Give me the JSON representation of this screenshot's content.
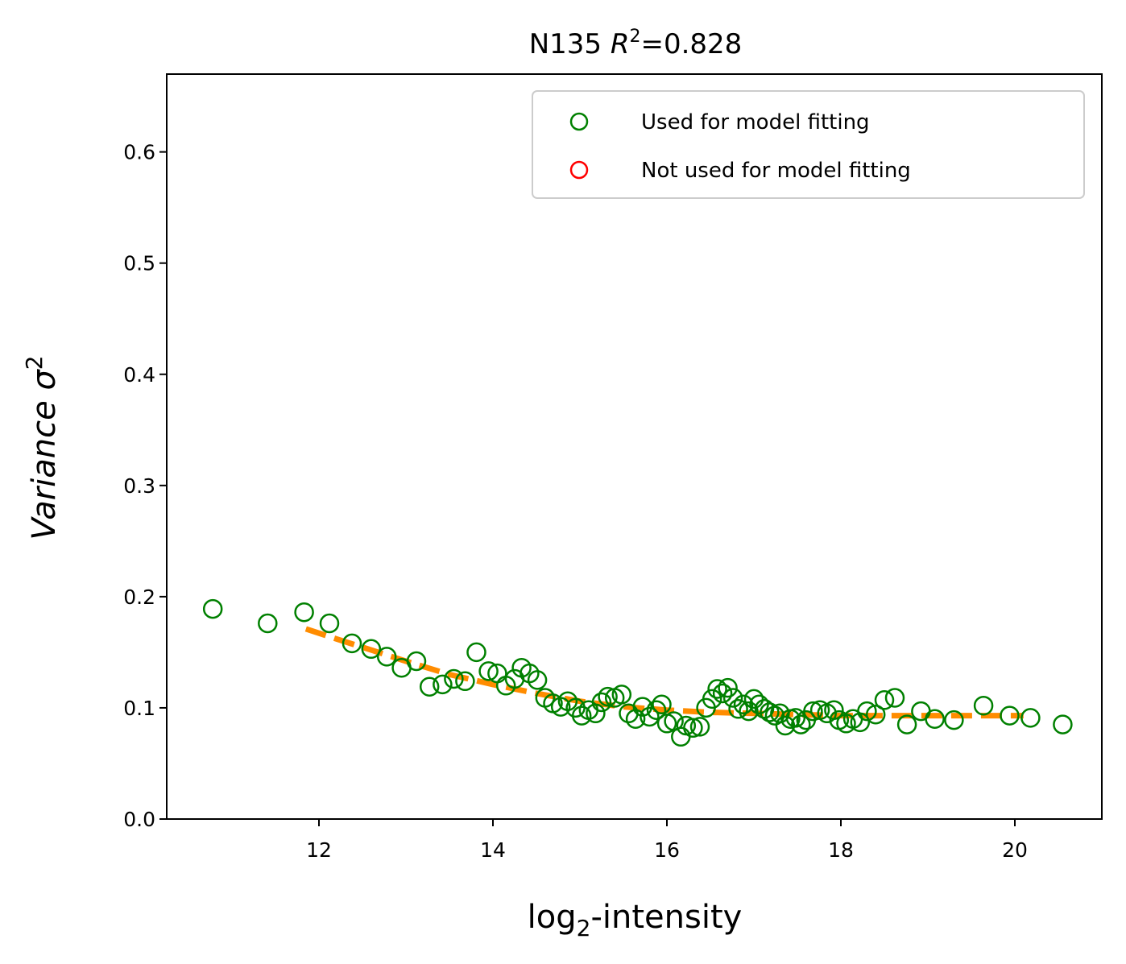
{
  "chart_data": {
    "type": "scatter",
    "title": "N135 R²=0.828",
    "title_parts": {
      "prefix": "N135 ",
      "var": "R",
      "sup": "2",
      "suffix": "=0.828"
    },
    "xlabel": "log₂-intensity",
    "xlabel_parts": {
      "base": "log",
      "sub": "2",
      "rest": "-intensity"
    },
    "ylabel": "Variance σ²",
    "ylabel_parts": {
      "text": "Variance σ",
      "sup": "2"
    },
    "xlim": [
      10.25,
      21.0
    ],
    "ylim": [
      0.0,
      0.67
    ],
    "xticks": [
      12,
      14,
      16,
      18,
      20
    ],
    "xtick_labels": [
      "12",
      "14",
      "16",
      "18",
      "20"
    ],
    "yticks": [
      0.0,
      0.1,
      0.2,
      0.3,
      0.4,
      0.5,
      0.6
    ],
    "ytick_labels": [
      "0.0",
      "0.1",
      "0.2",
      "0.3",
      "0.4",
      "0.5",
      "0.6"
    ],
    "grid": false,
    "legend_position": "top-right",
    "colors": {
      "used": "#008000",
      "not_used": "#ff0000",
      "fit": "#ff8c00"
    },
    "series": [
      {
        "name": "Used for model fitting",
        "marker": "open-circle",
        "color": "#008000",
        "points": [
          [
            10.78,
            0.189
          ],
          [
            11.41,
            0.176
          ],
          [
            11.83,
            0.186
          ],
          [
            12.12,
            0.176
          ],
          [
            12.38,
            0.158
          ],
          [
            12.6,
            0.153
          ],
          [
            12.78,
            0.146
          ],
          [
            12.95,
            0.136
          ],
          [
            13.12,
            0.142
          ],
          [
            13.27,
            0.119
          ],
          [
            13.42,
            0.121
          ],
          [
            13.55,
            0.126
          ],
          [
            13.68,
            0.124
          ],
          [
            13.81,
            0.15
          ],
          [
            13.95,
            0.133
          ],
          [
            14.05,
            0.131
          ],
          [
            14.15,
            0.12
          ],
          [
            14.25,
            0.126
          ],
          [
            14.33,
            0.136
          ],
          [
            14.42,
            0.131
          ],
          [
            14.51,
            0.125
          ],
          [
            14.6,
            0.109
          ],
          [
            14.69,
            0.104
          ],
          [
            14.78,
            0.101
          ],
          [
            14.86,
            0.106
          ],
          [
            14.95,
            0.1
          ],
          [
            15.02,
            0.093
          ],
          [
            15.1,
            0.098
          ],
          [
            15.18,
            0.095
          ],
          [
            15.25,
            0.105
          ],
          [
            15.32,
            0.11
          ],
          [
            15.4,
            0.109
          ],
          [
            15.48,
            0.112
          ],
          [
            15.56,
            0.095
          ],
          [
            15.64,
            0.09
          ],
          [
            15.72,
            0.101
          ],
          [
            15.8,
            0.092
          ],
          [
            15.88,
            0.098
          ],
          [
            15.94,
            0.103
          ],
          [
            16.0,
            0.086
          ],
          [
            16.08,
            0.088
          ],
          [
            16.16,
            0.074
          ],
          [
            16.22,
            0.084
          ],
          [
            16.3,
            0.082
          ],
          [
            16.38,
            0.083
          ],
          [
            16.45,
            0.1
          ],
          [
            16.52,
            0.108
          ],
          [
            16.58,
            0.117
          ],
          [
            16.64,
            0.113
          ],
          [
            16.7,
            0.118
          ],
          [
            16.76,
            0.109
          ],
          [
            16.82,
            0.099
          ],
          [
            16.88,
            0.103
          ],
          [
            16.94,
            0.097
          ],
          [
            17.0,
            0.108
          ],
          [
            17.06,
            0.103
          ],
          [
            17.12,
            0.099
          ],
          [
            17.18,
            0.096
          ],
          [
            17.24,
            0.093
          ],
          [
            17.3,
            0.095
          ],
          [
            17.36,
            0.084
          ],
          [
            17.42,
            0.09
          ],
          [
            17.48,
            0.091
          ],
          [
            17.54,
            0.085
          ],
          [
            17.6,
            0.089
          ],
          [
            17.68,
            0.097
          ],
          [
            17.76,
            0.098
          ],
          [
            17.84,
            0.095
          ],
          [
            17.92,
            0.098
          ],
          [
            17.98,
            0.089
          ],
          [
            18.06,
            0.086
          ],
          [
            18.14,
            0.09
          ],
          [
            18.22,
            0.087
          ],
          [
            18.3,
            0.097
          ],
          [
            18.4,
            0.094
          ],
          [
            18.5,
            0.107
          ],
          [
            18.62,
            0.109
          ],
          [
            18.76,
            0.085
          ],
          [
            18.92,
            0.097
          ],
          [
            19.08,
            0.09
          ],
          [
            19.3,
            0.089
          ],
          [
            19.64,
            0.102
          ],
          [
            19.94,
            0.093
          ],
          [
            20.18,
            0.091
          ],
          [
            20.55,
            0.085
          ]
        ]
      },
      {
        "name": "Not used for model fitting",
        "marker": "open-circle",
        "color": "#ff0000",
        "points": []
      }
    ],
    "fit_line": {
      "style": "dashed",
      "color": "#ff8c00",
      "points": [
        [
          11.85,
          0.171
        ],
        [
          12.2,
          0.162
        ],
        [
          12.6,
          0.152
        ],
        [
          13.0,
          0.142
        ],
        [
          13.5,
          0.13
        ],
        [
          14.0,
          0.121
        ],
        [
          14.5,
          0.113
        ],
        [
          15.0,
          0.106
        ],
        [
          15.5,
          0.101
        ],
        [
          16.0,
          0.098
        ],
        [
          16.5,
          0.096
        ],
        [
          17.0,
          0.095
        ],
        [
          17.5,
          0.094
        ],
        [
          18.0,
          0.093
        ],
        [
          18.5,
          0.093
        ],
        [
          19.0,
          0.093
        ],
        [
          19.5,
          0.093
        ],
        [
          20.1,
          0.093
        ]
      ]
    }
  }
}
